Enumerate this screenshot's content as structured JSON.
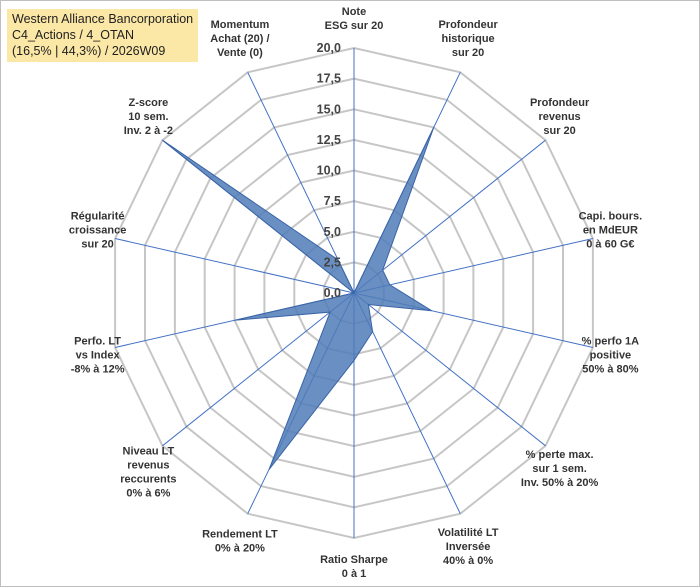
{
  "info": {
    "line1": "Western Alliance Bancorporation",
    "line2": "C4_Actions / 4_OTAN",
    "line3": "(16,5% | 44,3%) / 2026W09"
  },
  "chart_data": {
    "type": "radar",
    "title": "",
    "rmin": 0,
    "rmax": 20,
    "ticks": [
      "0,0",
      "2,5",
      "5,0",
      "7,5",
      "10,0",
      "12,5",
      "15,0",
      "17,5",
      "20,0"
    ],
    "axes": [
      [
        "Note",
        "ESG sur 20"
      ],
      [
        "Profondeur",
        "historique",
        "sur 20"
      ],
      [
        "Profondeur",
        "revenus",
        "sur 20"
      ],
      [
        "Capi. bours.",
        "en MdEUR",
        "0 à 60 G€"
      ],
      [
        "% perfo 1A",
        "positive",
        "50% à 80%"
      ],
      [
        "% perte max.",
        "sur 1 sem.",
        "Inv. 50% à 20%"
      ],
      [
        "Volatilité LT",
        "Inversée",
        "40% à 0%"
      ],
      [
        "Ratio Sharpe",
        "0 à 1"
      ],
      [
        "Rendement LT",
        "0% à 20%"
      ],
      [
        "Niveau LT",
        "revenus",
        "reccurents",
        "0% à 6%"
      ],
      [
        "Perfo. LT",
        "vs Index",
        "-8% à 12%"
      ],
      [
        "Régularité",
        "croissance",
        "sur 20"
      ],
      [
        "Z-score",
        "10 sem.",
        "Inv. 2 à -2"
      ],
      [
        "Momentum",
        "Achat (20) /",
        "Vente (0)"
      ]
    ],
    "series": [
      {
        "name": "Western Alliance Bancorporation",
        "values": [
          0,
          15,
          3,
          3,
          6.5,
          1.5,
          3.5,
          5.5,
          16,
          2.5,
          10,
          0,
          20,
          3
        ],
        "color": "#4f7bb8"
      }
    ]
  }
}
